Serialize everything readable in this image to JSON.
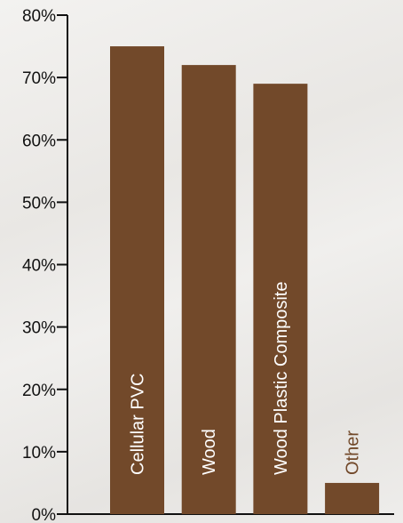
{
  "chart_data": {
    "type": "bar",
    "orientation": "vertical",
    "categories": [
      "Cellular PVC",
      "Wood",
      "Wood Plastic Composite",
      "Other"
    ],
    "values": [
      75,
      72,
      69,
      5
    ],
    "unit": "%",
    "ylim": [
      0,
      80
    ],
    "yticks": [
      "0%",
      "10%",
      "20%",
      "30%",
      "40%",
      "50%",
      "60%",
      "70%",
      "80%"
    ],
    "title": "",
    "xlabel": "",
    "ylabel": "",
    "grid": false,
    "category_labels_position": "inside-bar-rotated",
    "colors": {
      "bar": "#72492a",
      "label_inside": "#ffffff",
      "label_outside": "#72492a",
      "axis": "#111111",
      "tick_text": "#111111"
    }
  }
}
